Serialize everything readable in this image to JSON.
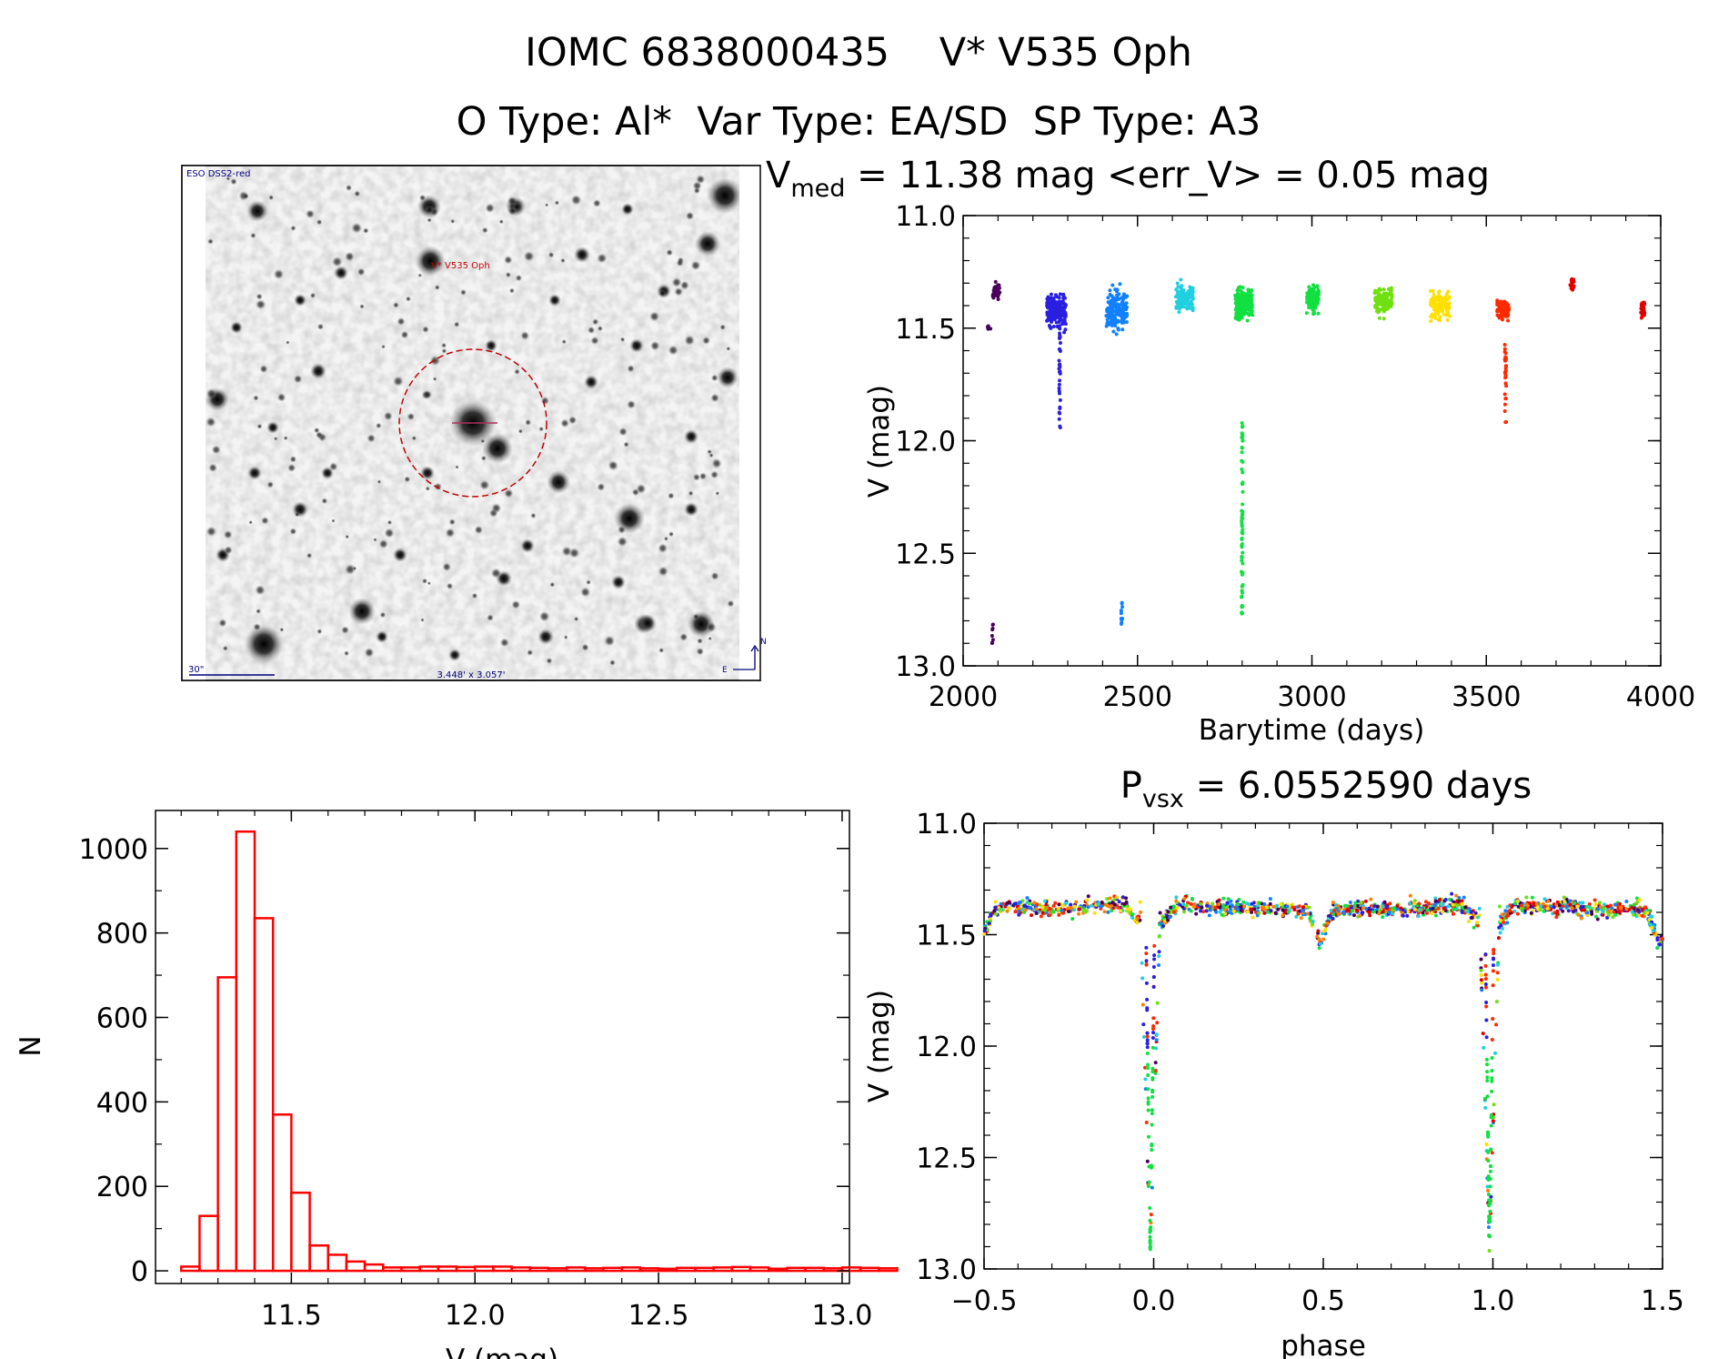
{
  "header": {
    "title": "IOMC 6838000435    V* V535 Oph",
    "subtitle": "O Type: Al*  Var Type: EA/SD  SP Type: A3"
  },
  "finder_chart": {
    "source_label": "ESO DSS2-red",
    "target_label": "V* V535 Oph",
    "scale_label": "30\"",
    "field_size_label": "3.448' x 3.057'",
    "north_label": "N",
    "east_label": "E"
  },
  "colors": {
    "histogram": "#ff0000",
    "circle": "#c00000",
    "finder_text": "#00007a",
    "season_palette": [
      "#4a005a",
      "#2a1fe0",
      "#1080ff",
      "#20d0e0",
      "#10e040",
      "#70e010",
      "#ffe000",
      "#ff8000",
      "#ff2a00",
      "#e00000"
    ]
  },
  "chart_data": [
    {
      "id": "light_curve",
      "type": "scatter",
      "title": "V_med = 11.38 mag <err_V> = 0.05 mag",
      "title_parts": {
        "v": "V",
        "sub": "med",
        "rest": " = 11.38 mag <err_V> = 0.05 mag"
      },
      "xlabel": "Barytime (days)",
      "ylabel": "V (mag)",
      "xlim": [
        2000,
        4000
      ],
      "ylim": [
        13.0,
        11.0
      ],
      "y_inverted": true,
      "xticks": [
        2000,
        2500,
        3000,
        3500,
        4000
      ],
      "yticks": [
        11.0,
        11.5,
        12.0,
        12.5,
        13.0
      ],
      "xtick_labels": [
        "2000",
        "2500",
        "3000",
        "3500",
        "4000"
      ],
      "ytick_labels": [
        "11.0",
        "11.5",
        "12.0",
        "12.5",
        "13.0"
      ],
      "seasons": [
        {
          "x": [
            2070,
            2080
          ],
          "center": 11.5,
          "spread": 0.03,
          "n": 6,
          "color_index": 0,
          "dips": [
            {
              "x": 2085,
              "ymin": 12.8,
              "ymax": 12.92
            }
          ]
        },
        {
          "x": [
            2085,
            2105
          ],
          "center": 11.34,
          "spread": 0.08,
          "n": 40,
          "color_index": 0,
          "dips": []
        },
        {
          "x": [
            2240,
            2295
          ],
          "center": 11.42,
          "spread": 0.12,
          "n": 180,
          "color_index": 1,
          "dips": [
            {
              "x": 2277,
              "ymin": 11.5,
              "ymax": 11.95
            }
          ]
        },
        {
          "x": [
            2410,
            2470
          ],
          "center": 11.42,
          "spread": 0.14,
          "n": 160,
          "color_index": 2,
          "dips": [
            {
              "x": 2455,
              "ymin": 12.68,
              "ymax": 12.84
            }
          ]
        },
        {
          "x": [
            2610,
            2660
          ],
          "center": 11.36,
          "spread": 0.1,
          "n": 120,
          "color_index": 3,
          "dips": []
        },
        {
          "x": [
            2780,
            2830
          ],
          "center": 11.39,
          "spread": 0.1,
          "n": 200,
          "color_index": 4,
          "dips": [
            {
              "x": 2800,
              "ymin": 11.92,
              "ymax": 12.8
            }
          ]
        },
        {
          "x": [
            2985,
            3020
          ],
          "center": 11.37,
          "spread": 0.09,
          "n": 110,
          "color_index": 4,
          "dips": []
        },
        {
          "x": [
            3180,
            3230
          ],
          "center": 11.38,
          "spread": 0.1,
          "n": 120,
          "color_index": 5,
          "dips": []
        },
        {
          "x": [
            3340,
            3395
          ],
          "center": 11.4,
          "spread": 0.1,
          "n": 130,
          "color_index": 6,
          "dips": []
        },
        {
          "x": [
            3530,
            3565
          ],
          "center": 11.42,
          "spread": 0.08,
          "n": 80,
          "color_index": 8,
          "dips": [
            {
              "x": 3555,
              "ymin": 11.55,
              "ymax": 11.94
            }
          ]
        },
        {
          "x": [
            3740,
            3752
          ],
          "center": 11.3,
          "spread": 0.05,
          "n": 20,
          "color_index": 9,
          "dips": []
        },
        {
          "x": [
            3940,
            3955
          ],
          "center": 11.42,
          "spread": 0.06,
          "n": 25,
          "color_index": 9,
          "dips": []
        }
      ]
    },
    {
      "id": "histogram",
      "type": "bar",
      "title": "",
      "xlabel": "V (mag)",
      "ylabel": "N",
      "xlim": [
        11.13,
        13.02
      ],
      "ylim": [
        -30,
        1090
      ],
      "xticks": [
        11.5,
        12.0,
        12.5,
        13.0
      ],
      "xtick_labels": [
        "11.5",
        "12.0",
        "12.5",
        "13.0"
      ],
      "yticks": [
        0,
        200,
        400,
        600,
        800,
        1000
      ],
      "ytick_labels": [
        "0",
        "200",
        "400",
        "600",
        "800",
        "1000"
      ],
      "bin_width": 0.05,
      "bin_start": 11.15,
      "counts": [
        0,
        10,
        130,
        695,
        1040,
        835,
        370,
        185,
        60,
        38,
        22,
        15,
        8,
        8,
        10,
        10,
        9,
        10,
        10,
        8,
        7,
        6,
        8,
        6,
        7,
        8,
        6,
        5,
        7,
        7,
        8,
        9,
        8,
        5,
        7,
        7,
        6,
        8,
        7,
        6
      ]
    },
    {
      "id": "phased_light_curve",
      "type": "scatter",
      "title": "P_vsx = 6.0552590 days",
      "title_parts": {
        "v": "P",
        "sub": "vsx",
        "rest": " = 6.0552590 days"
      },
      "xlabel": "phase",
      "ylabel": "V (mag)",
      "xlim": [
        -0.5,
        1.5
      ],
      "ylim": [
        13.0,
        11.0
      ],
      "y_inverted": true,
      "xticks": [
        -0.5,
        0.0,
        0.5,
        1.0,
        1.5
      ],
      "xtick_labels": [
        "−0.5",
        "0.0",
        "0.5",
        "1.0",
        "1.5"
      ],
      "yticks": [
        11.0,
        11.5,
        12.0,
        12.5,
        13.0
      ],
      "ytick_labels": [
        "11.0",
        "11.5",
        "12.0",
        "12.5",
        "13.0"
      ],
      "period_days": 6.055259,
      "primary_eclipse_phase": -0.01,
      "primary_eclipse_depth_mag": 12.92,
      "secondary_eclipse_phase": 0.5,
      "secondary_eclipse_depth_mag": 11.52,
      "out_of_eclipse_mag": 11.35
    }
  ]
}
